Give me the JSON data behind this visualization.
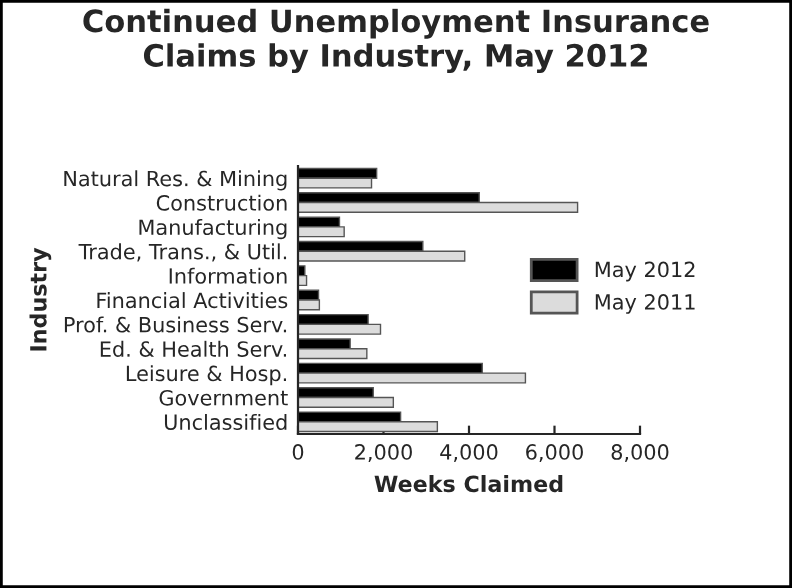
{
  "chart_data": {
    "type": "bar",
    "orientation": "horizontal",
    "title": "Continued Unemployment Insurance\nClaims by Industry, May 2012",
    "xlabel": "Weeks Claimed",
    "ylabel": "Industry",
    "categories": [
      "Natural Res. & Mining",
      "Construction",
      "Manufacturing",
      "Trade, Trans., & Util.",
      "Information",
      "Financial Activities",
      "Prof. & Business Serv.",
      "Ed. & Health Serv.",
      "Leisure & Hosp.",
      "Government",
      "Unclassified"
    ],
    "series": [
      {
        "name": "May 2012",
        "color": "#000000",
        "values": [
          1840,
          4240,
          970,
          2920,
          160,
          480,
          1640,
          1220,
          4310,
          1760,
          2400
        ]
      },
      {
        "name": "May 2011",
        "color": "#dcdcdc",
        "values": [
          1720,
          6540,
          1080,
          3900,
          200,
          500,
          1930,
          1610,
          5320,
          2230,
          3260
        ]
      }
    ],
    "xlim": [
      0,
      8000
    ],
    "xticks": [
      {
        "value": 0,
        "label": "0"
      },
      {
        "value": 2000,
        "label": "2,000"
      },
      {
        "value": 4000,
        "label": "4,000"
      },
      {
        "value": 6000,
        "label": "6,000"
      },
      {
        "value": 8000,
        "label": "8,000"
      }
    ],
    "legend": "right",
    "grid": false
  }
}
